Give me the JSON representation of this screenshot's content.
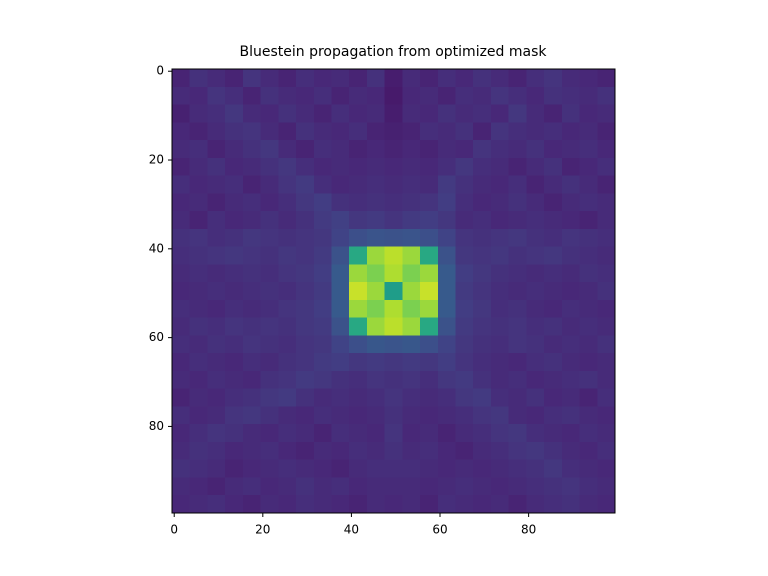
{
  "chart_data": {
    "type": "heatmap",
    "title": "Bluestein propagation from optimized mask",
    "colormap": "viridis",
    "clim": [
      0,
      1
    ],
    "xlim": [
      -0.5,
      99.5
    ],
    "ylim": [
      99.5,
      -0.5
    ],
    "xticks": [
      0,
      20,
      40,
      60,
      80
    ],
    "yticks": [
      0,
      20,
      40,
      60,
      80
    ],
    "x_bins": [
      -0.5,
      3.5,
      7.5,
      11.5,
      15.5,
      19.5,
      23.5,
      27.5,
      31.5,
      35.5,
      39.5,
      43.5,
      47.5,
      51.5,
      55.5,
      59.5,
      63.5,
      67.5,
      71.5,
      75.5,
      79.5,
      83.5,
      87.5,
      91.5,
      95.5,
      99.5
    ],
    "y_bins": [
      -0.5,
      3.5,
      7.5,
      11.5,
      15.5,
      19.5,
      23.5,
      27.5,
      31.5,
      35.5,
      39.5,
      43.5,
      47.5,
      51.5,
      55.5,
      59.5,
      63.5,
      67.5,
      71.5,
      75.5,
      79.5,
      83.5,
      87.5,
      91.5,
      95.5,
      99.5
    ],
    "values": [
      [
        0.1,
        0.14,
        0.12,
        0.1,
        0.15,
        0.12,
        0.1,
        0.13,
        0.11,
        0.12,
        0.1,
        0.14,
        0.08,
        0.12,
        0.1,
        0.13,
        0.11,
        0.14,
        0.12,
        0.1,
        0.13,
        0.15,
        0.12,
        0.11,
        0.1
      ],
      [
        0.12,
        0.11,
        0.15,
        0.13,
        0.1,
        0.14,
        0.12,
        0.11,
        0.13,
        0.1,
        0.12,
        0.11,
        0.07,
        0.11,
        0.12,
        0.1,
        0.13,
        0.12,
        0.15,
        0.13,
        0.11,
        0.14,
        0.13,
        0.12,
        0.14
      ],
      [
        0.09,
        0.12,
        0.13,
        0.16,
        0.12,
        0.11,
        0.14,
        0.12,
        0.1,
        0.13,
        0.11,
        0.12,
        0.08,
        0.12,
        0.11,
        0.14,
        0.12,
        0.13,
        0.11,
        0.16,
        0.12,
        0.1,
        0.14,
        0.11,
        0.12
      ],
      [
        0.11,
        0.1,
        0.12,
        0.14,
        0.15,
        0.12,
        0.1,
        0.14,
        0.12,
        0.11,
        0.13,
        0.1,
        0.09,
        0.1,
        0.13,
        0.12,
        0.14,
        0.1,
        0.15,
        0.13,
        0.12,
        0.13,
        0.11,
        0.12,
        0.1
      ],
      [
        0.12,
        0.13,
        0.1,
        0.12,
        0.14,
        0.16,
        0.12,
        0.1,
        0.13,
        0.12,
        0.1,
        0.11,
        0.1,
        0.11,
        0.1,
        0.12,
        0.11,
        0.15,
        0.13,
        0.12,
        0.14,
        0.11,
        0.12,
        0.13,
        0.11
      ],
      [
        0.1,
        0.12,
        0.14,
        0.11,
        0.12,
        0.14,
        0.16,
        0.13,
        0.11,
        0.12,
        0.11,
        0.12,
        0.11,
        0.12,
        0.11,
        0.13,
        0.16,
        0.13,
        0.12,
        0.1,
        0.12,
        0.14,
        0.1,
        0.11,
        0.13
      ],
      [
        0.13,
        0.11,
        0.12,
        0.13,
        0.1,
        0.12,
        0.15,
        0.17,
        0.13,
        0.11,
        0.12,
        0.13,
        0.12,
        0.13,
        0.12,
        0.17,
        0.14,
        0.12,
        0.11,
        0.13,
        0.1,
        0.12,
        0.14,
        0.12,
        0.1
      ],
      [
        0.11,
        0.12,
        0.1,
        0.12,
        0.13,
        0.11,
        0.13,
        0.16,
        0.18,
        0.14,
        0.13,
        0.14,
        0.13,
        0.14,
        0.15,
        0.18,
        0.13,
        0.11,
        0.12,
        0.14,
        0.12,
        0.1,
        0.12,
        0.13,
        0.12
      ],
      [
        0.12,
        0.1,
        0.13,
        0.11,
        0.12,
        0.14,
        0.12,
        0.14,
        0.17,
        0.19,
        0.16,
        0.17,
        0.15,
        0.17,
        0.18,
        0.16,
        0.12,
        0.13,
        0.11,
        0.12,
        0.13,
        0.12,
        0.11,
        0.1,
        0.12
      ],
      [
        0.14,
        0.15,
        0.13,
        0.14,
        0.16,
        0.15,
        0.14,
        0.15,
        0.16,
        0.2,
        0.24,
        0.26,
        0.25,
        0.26,
        0.24,
        0.2,
        0.15,
        0.14,
        0.15,
        0.16,
        0.14,
        0.13,
        0.15,
        0.14,
        0.13
      ],
      [
        0.13,
        0.14,
        0.15,
        0.16,
        0.15,
        0.14,
        0.16,
        0.15,
        0.17,
        0.25,
        0.6,
        0.85,
        0.9,
        0.85,
        0.6,
        0.25,
        0.16,
        0.15,
        0.16,
        0.14,
        0.15,
        0.16,
        0.14,
        0.13,
        0.12
      ],
      [
        0.12,
        0.13,
        0.12,
        0.13,
        0.14,
        0.13,
        0.15,
        0.16,
        0.18,
        0.28,
        0.85,
        0.8,
        0.88,
        0.8,
        0.85,
        0.28,
        0.18,
        0.16,
        0.14,
        0.13,
        0.12,
        0.13,
        0.12,
        0.14,
        0.13
      ],
      [
        0.11,
        0.12,
        0.13,
        0.12,
        0.13,
        0.14,
        0.13,
        0.15,
        0.17,
        0.28,
        0.92,
        0.85,
        0.55,
        0.85,
        0.92,
        0.28,
        0.17,
        0.15,
        0.13,
        0.12,
        0.13,
        0.12,
        0.11,
        0.12,
        0.14
      ],
      [
        0.13,
        0.12,
        0.11,
        0.13,
        0.12,
        0.13,
        0.15,
        0.16,
        0.18,
        0.28,
        0.85,
        0.8,
        0.88,
        0.8,
        0.85,
        0.28,
        0.18,
        0.16,
        0.13,
        0.14,
        0.12,
        0.11,
        0.13,
        0.12,
        0.11
      ],
      [
        0.12,
        0.14,
        0.13,
        0.15,
        0.14,
        0.15,
        0.14,
        0.16,
        0.17,
        0.25,
        0.6,
        0.85,
        0.9,
        0.85,
        0.6,
        0.25,
        0.17,
        0.15,
        0.14,
        0.15,
        0.13,
        0.14,
        0.12,
        0.13,
        0.12
      ],
      [
        0.13,
        0.12,
        0.14,
        0.13,
        0.15,
        0.14,
        0.13,
        0.15,
        0.16,
        0.2,
        0.24,
        0.27,
        0.26,
        0.27,
        0.24,
        0.2,
        0.16,
        0.14,
        0.13,
        0.15,
        0.14,
        0.12,
        0.13,
        0.12,
        0.14
      ],
      [
        0.11,
        0.13,
        0.12,
        0.11,
        0.13,
        0.12,
        0.14,
        0.15,
        0.17,
        0.18,
        0.16,
        0.17,
        0.16,
        0.17,
        0.16,
        0.18,
        0.15,
        0.13,
        0.12,
        0.11,
        0.13,
        0.14,
        0.12,
        0.11,
        0.12
      ],
      [
        0.12,
        0.11,
        0.13,
        0.12,
        0.11,
        0.14,
        0.15,
        0.17,
        0.16,
        0.14,
        0.13,
        0.15,
        0.14,
        0.15,
        0.13,
        0.16,
        0.17,
        0.14,
        0.12,
        0.13,
        0.11,
        0.12,
        0.13,
        0.14,
        0.12
      ],
      [
        0.1,
        0.12,
        0.11,
        0.13,
        0.14,
        0.16,
        0.17,
        0.14,
        0.12,
        0.13,
        0.12,
        0.13,
        0.15,
        0.13,
        0.12,
        0.13,
        0.16,
        0.17,
        0.13,
        0.12,
        0.14,
        0.11,
        0.12,
        0.1,
        0.13
      ],
      [
        0.13,
        0.11,
        0.12,
        0.15,
        0.16,
        0.14,
        0.12,
        0.11,
        0.13,
        0.12,
        0.11,
        0.12,
        0.14,
        0.12,
        0.11,
        0.12,
        0.13,
        0.15,
        0.16,
        0.12,
        0.11,
        0.13,
        0.14,
        0.12,
        0.11
      ],
      [
        0.11,
        0.13,
        0.15,
        0.14,
        0.12,
        0.11,
        0.13,
        0.12,
        0.1,
        0.13,
        0.12,
        0.11,
        0.15,
        0.11,
        0.12,
        0.1,
        0.12,
        0.13,
        0.15,
        0.16,
        0.13,
        0.12,
        0.11,
        0.13,
        0.12
      ],
      [
        0.12,
        0.14,
        0.13,
        0.11,
        0.12,
        0.13,
        0.11,
        0.1,
        0.12,
        0.11,
        0.13,
        0.12,
        0.14,
        0.12,
        0.13,
        0.11,
        0.1,
        0.12,
        0.13,
        0.15,
        0.16,
        0.14,
        0.12,
        0.11,
        0.13
      ],
      [
        0.14,
        0.13,
        0.12,
        0.1,
        0.11,
        0.12,
        0.13,
        0.12,
        0.11,
        0.1,
        0.12,
        0.13,
        0.13,
        0.13,
        0.12,
        0.11,
        0.12,
        0.11,
        0.12,
        0.13,
        0.14,
        0.16,
        0.13,
        0.12,
        0.11
      ],
      [
        0.12,
        0.11,
        0.1,
        0.12,
        0.13,
        0.11,
        0.12,
        0.14,
        0.12,
        0.13,
        0.11,
        0.12,
        0.12,
        0.12,
        0.11,
        0.12,
        0.13,
        0.12,
        0.11,
        0.12,
        0.13,
        0.14,
        0.15,
        0.13,
        0.12
      ],
      [
        0.11,
        0.12,
        0.13,
        0.11,
        0.1,
        0.12,
        0.11,
        0.13,
        0.12,
        0.11,
        0.1,
        0.12,
        0.11,
        0.12,
        0.1,
        0.13,
        0.12,
        0.11,
        0.12,
        0.1,
        0.12,
        0.13,
        0.14,
        0.12,
        0.11
      ]
    ]
  }
}
